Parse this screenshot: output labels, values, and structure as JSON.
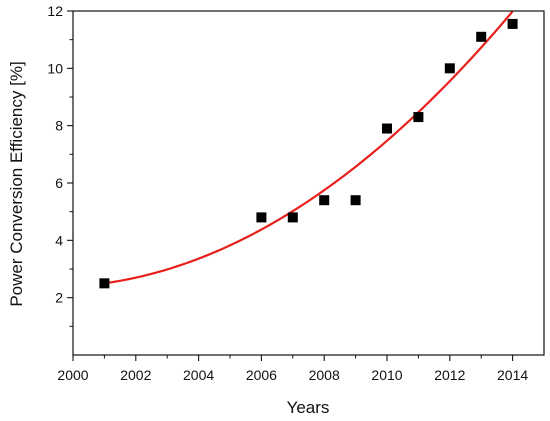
{
  "chart_data": {
    "type": "scatter",
    "title": "",
    "xlabel": "Years",
    "ylabel": "Power Conversion Efficiency [%]",
    "xlim": [
      2000,
      2015
    ],
    "ylim": [
      0,
      12
    ],
    "xticks": [
      2000,
      2002,
      2004,
      2006,
      2008,
      2010,
      2012,
      2014
    ],
    "xtick_labels": [
      "2000",
      "2002",
      "2004",
      "2006",
      "2008",
      "2010",
      "2012",
      "2014"
    ],
    "yticks": [
      2,
      4,
      6,
      8,
      10,
      12
    ],
    "ytick_labels": [
      "2",
      "4",
      "6",
      "8",
      "10",
      "12"
    ],
    "grid": false,
    "series": [
      {
        "marker": "square",
        "color": "#000000",
        "x": [
          2001,
          2006,
          2007,
          2008,
          2009,
          2010,
          2011,
          2012,
          2013,
          2014
        ],
        "y": [
          2.5,
          4.8,
          4.8,
          5.4,
          5.4,
          7.9,
          8.3,
          10.0,
          11.1,
          11.55
        ]
      }
    ],
    "fit_curve": {
      "type": "polynomial-2",
      "color": "#e8201c",
      "x_range": [
        2001,
        2014
      ],
      "coefficients_from_2001": [
        2.5,
        0.154,
        0.0443
      ]
    }
  }
}
